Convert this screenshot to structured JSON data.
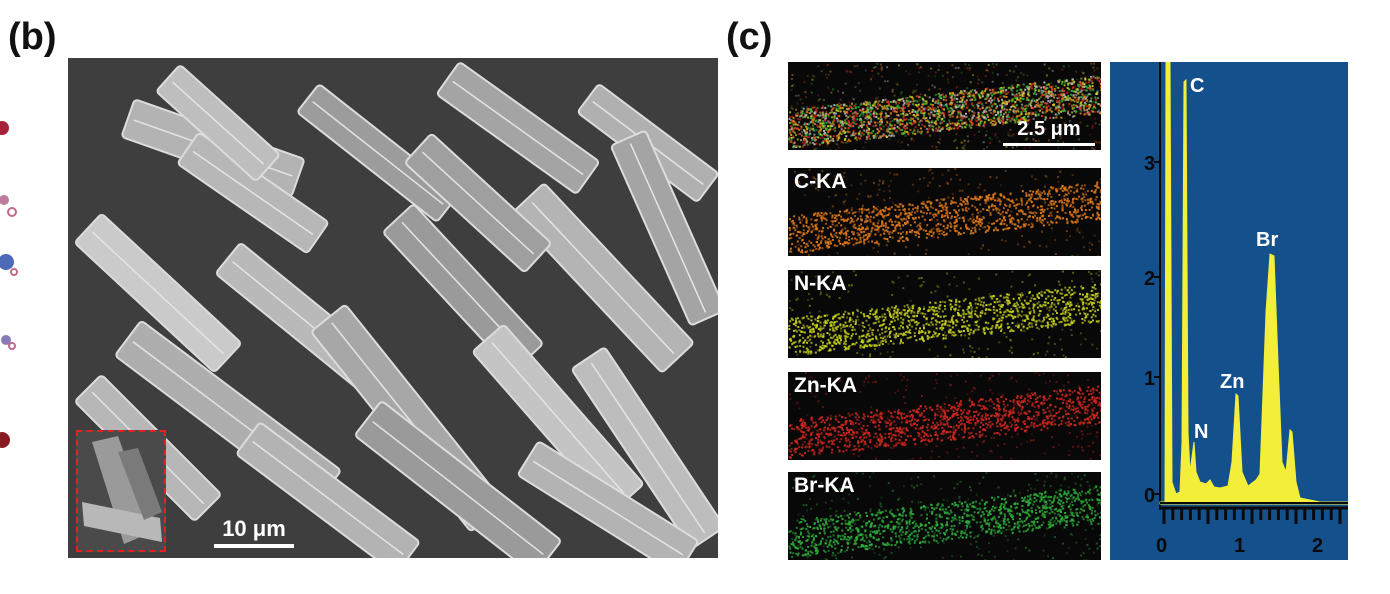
{
  "panel_b": {
    "label": "(b)",
    "scale_bar": "10 μm"
  },
  "panel_c": {
    "label": "(c)",
    "composite_scale_bar": "2.5 μm",
    "maps": [
      {
        "label": "C-KA",
        "color": "#e07a1a"
      },
      {
        "label": "N-KA",
        "color": "#c8d21e"
      },
      {
        "label": "Zn-KA",
        "color": "#d2281e"
      },
      {
        "label": "Br-KA",
        "color": "#2eae3a"
      }
    ],
    "spectrum": {
      "y_ticks": [
        "3",
        "2",
        "1",
        "0"
      ],
      "x_ticks": [
        "0",
        "1",
        "2"
      ],
      "peaks": [
        "C",
        "N",
        "Zn",
        "Br"
      ],
      "fill_color": "#f2ee3a",
      "background": "#14508c"
    }
  }
}
